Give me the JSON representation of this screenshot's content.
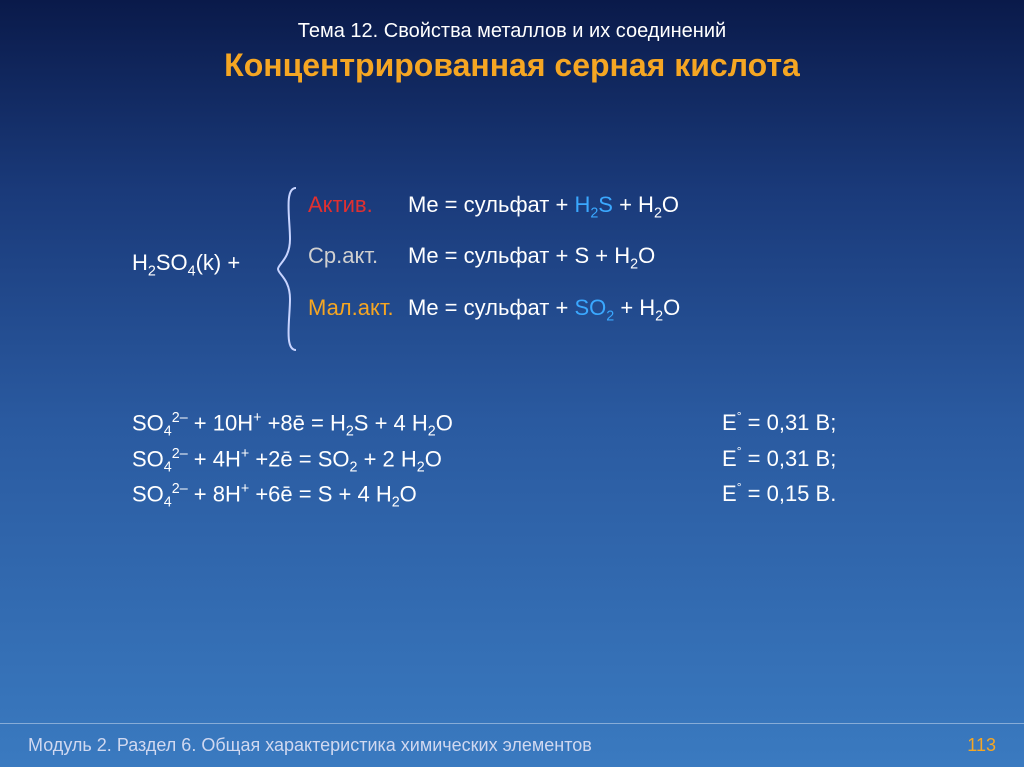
{
  "colors": {
    "title": "#f5a623",
    "active_label": "#e03030",
    "medium_label": "#d0d0d0",
    "low_label": "#f5a623",
    "product_highlight": "#3aa8ff",
    "text": "#ffffff",
    "footer_text": "#d0d8f0",
    "page_num": "#f5a623",
    "brace_stroke": "#c8d4ff"
  },
  "header": {
    "topic": "Тема 12. Свойства металлов и их соединений",
    "title": "Концентрированная серная кислота"
  },
  "reaction": {
    "lhs_html": "H<sub>2</sub>SO<sub>4</sub>(k) +",
    "cases": [
      {
        "label": "Актив.",
        "label_color_key": "active_label",
        "rhs_pre": "Me = сульфат + ",
        "product_html": "H<sub>2</sub>S",
        "product_color_key": "product_highlight",
        "rhs_post_html": " + H<sub>2</sub>O"
      },
      {
        "label": "Ср.акт.",
        "label_color_key": "medium_label",
        "rhs_pre": "Me = сульфат + ",
        "product_html": "S",
        "product_color_key": "text",
        "rhs_post_html": " + H<sub>2</sub>O"
      },
      {
        "label": "Мал.акт.",
        "label_color_key": "low_label",
        "rhs_pre": "Me = сульфат + ",
        "product_html": "SO<sub>2</sub>",
        "product_color_key": "product_highlight",
        "rhs_post_html": " + H<sub>2</sub>O"
      }
    ]
  },
  "equations": [
    {
      "left_html": "SO<sub>4</sub><sup>2–</sup> + 10H<sup>+</sup> +8ē = H<sub>2</sub>S + 4 H<sub>2</sub>O",
      "right_html": "E<span class=\"sup-deg\">°</span> = 0,31 В;"
    },
    {
      "left_html": "SO<sub>4</sub><sup>2–</sup> + 4H<sup>+</sup> +2ē = SO<sub>2</sub> + 2 H<sub>2</sub>O",
      "right_html": "E<span class=\"sup-deg\">°</span> = 0,31 В;"
    },
    {
      "left_html": "SO<sub>4</sub><sup>2–</sup> + 8H<sup>+</sup> +6ē = S + 4 H<sub>2</sub>O",
      "right_html": "E<span class=\"sup-deg\">°</span> = 0,15 В."
    }
  ],
  "footer": {
    "left": "Модуль 2. Раздел 6. Общая характеристика химических элементов",
    "page": "113"
  }
}
